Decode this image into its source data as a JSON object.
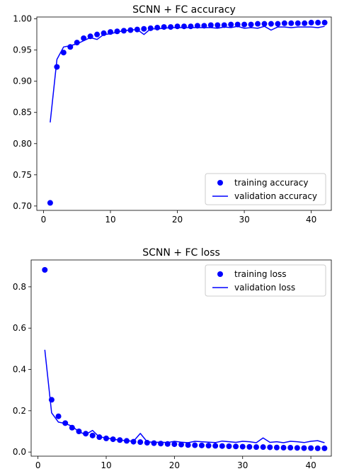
{
  "chart_data": [
    {
      "type": "line",
      "title": "SCNN + FC accuracy",
      "xlabel": "",
      "ylabel": "",
      "xlim": [
        -1,
        43
      ],
      "ylim": [
        0.693,
        1.003
      ],
      "xticks": [
        0,
        10,
        20,
        30,
        40
      ],
      "yticks": [
        0.7,
        0.75,
        0.8,
        0.85,
        0.9,
        0.95,
        1.0
      ],
      "ytick_labels": [
        "0.70",
        "0.75",
        "0.80",
        "0.85",
        "0.90",
        "0.95",
        "1.00"
      ],
      "legend_position": "lower-right",
      "x": [
        1,
        2,
        3,
        4,
        5,
        6,
        7,
        8,
        9,
        10,
        11,
        12,
        13,
        14,
        15,
        16,
        17,
        18,
        19,
        20,
        21,
        22,
        23,
        24,
        25,
        26,
        27,
        28,
        29,
        30,
        31,
        32,
        33,
        34,
        35,
        36,
        37,
        38,
        39,
        40,
        41,
        42
      ],
      "series": [
        {
          "name": "training accuracy",
          "style": "markers",
          "color": "#0000ff",
          "values": [
            0.705,
            0.923,
            0.946,
            0.955,
            0.962,
            0.969,
            0.972,
            0.975,
            0.977,
            0.979,
            0.98,
            0.981,
            0.982,
            0.983,
            0.984,
            0.985,
            0.986,
            0.987,
            0.987,
            0.988,
            0.988,
            0.988,
            0.989,
            0.989,
            0.99,
            0.99,
            0.99,
            0.991,
            0.991,
            0.991,
            0.991,
            0.992,
            0.992,
            0.992,
            0.992,
            0.993,
            0.993,
            0.993,
            0.993,
            0.994,
            0.994,
            0.994
          ]
        },
        {
          "name": "validation accuracy",
          "style": "line",
          "color": "#0000ff",
          "values": [
            0.834,
            0.935,
            0.955,
            0.957,
            0.96,
            0.965,
            0.97,
            0.967,
            0.975,
            0.976,
            0.979,
            0.981,
            0.982,
            0.983,
            0.975,
            0.984,
            0.984,
            0.985,
            0.986,
            0.986,
            0.986,
            0.986,
            0.986,
            0.986,
            0.986,
            0.985,
            0.987,
            0.986,
            0.988,
            0.985,
            0.986,
            0.985,
            0.988,
            0.982,
            0.987,
            0.987,
            0.986,
            0.987,
            0.987,
            0.987,
            0.986,
            0.988
          ]
        }
      ]
    },
    {
      "type": "line",
      "title": "SCNN + FC loss",
      "xlabel": "",
      "ylabel": "",
      "xlim": [
        -1,
        43
      ],
      "ylim": [
        -0.02,
        0.93
      ],
      "xticks": [
        0,
        10,
        20,
        30,
        40
      ],
      "yticks": [
        0.0,
        0.2,
        0.4,
        0.6,
        0.8
      ],
      "ytick_labels": [
        "0.0",
        "0.2",
        "0.4",
        "0.6",
        "0.8"
      ],
      "legend_position": "upper-right",
      "x": [
        1,
        2,
        3,
        4,
        5,
        6,
        7,
        8,
        9,
        10,
        11,
        12,
        13,
        14,
        15,
        16,
        17,
        18,
        19,
        20,
        21,
        22,
        23,
        24,
        25,
        26,
        27,
        28,
        29,
        30,
        31,
        32,
        33,
        34,
        35,
        36,
        37,
        38,
        39,
        40,
        41,
        42
      ],
      "series": [
        {
          "name": "training loss",
          "style": "markers",
          "color": "#0000ff",
          "values": [
            0.882,
            0.253,
            0.173,
            0.14,
            0.118,
            0.1,
            0.089,
            0.08,
            0.072,
            0.066,
            0.062,
            0.058,
            0.054,
            0.05,
            0.048,
            0.045,
            0.043,
            0.041,
            0.039,
            0.038,
            0.036,
            0.034,
            0.033,
            0.032,
            0.031,
            0.03,
            0.029,
            0.028,
            0.027,
            0.026,
            0.025,
            0.024,
            0.024,
            0.023,
            0.022,
            0.021,
            0.021,
            0.02,
            0.019,
            0.019,
            0.018,
            0.018
          ]
        },
        {
          "name": "validation loss",
          "style": "line",
          "color": "#0000ff",
          "values": [
            0.495,
            0.19,
            0.145,
            0.138,
            0.125,
            0.098,
            0.085,
            0.105,
            0.072,
            0.07,
            0.062,
            0.058,
            0.055,
            0.052,
            0.09,
            0.05,
            0.047,
            0.048,
            0.046,
            0.052,
            0.048,
            0.045,
            0.052,
            0.05,
            0.048,
            0.046,
            0.053,
            0.05,
            0.047,
            0.052,
            0.05,
            0.045,
            0.068,
            0.047,
            0.05,
            0.045,
            0.052,
            0.05,
            0.046,
            0.052,
            0.055,
            0.045
          ]
        }
      ]
    }
  ]
}
